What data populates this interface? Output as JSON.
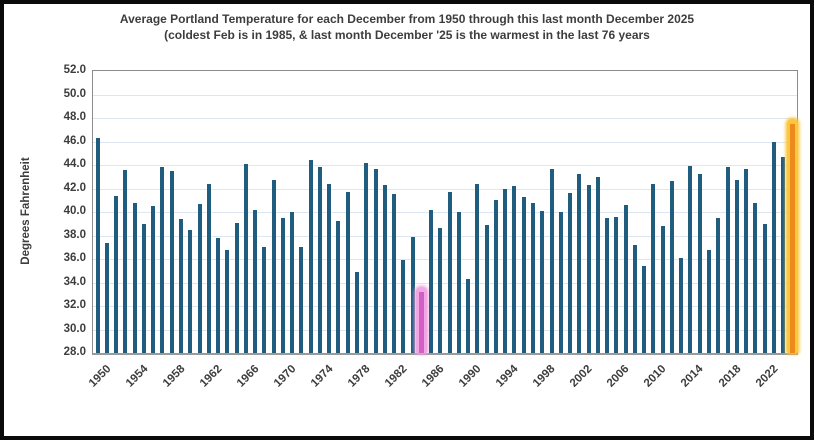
{
  "chart_data": {
    "type": "bar",
    "title": "Average Portland Temperature for each December from 1950 through this last month December 2025",
    "subtitle": "(coldest Feb is in 1985, & last month December '25 is the warmest in the last 76 years",
    "ylabel": "Degrees Fahrenheit",
    "ylim": [
      28.0,
      52.0
    ],
    "ytick_step": 2.0,
    "ytick_labels": [
      "52.0",
      "50.0",
      "48.0",
      "46.0",
      "44.0",
      "42.0",
      "40.0",
      "38.0",
      "36.0",
      "34.0",
      "32.0",
      "30.0",
      "28.0"
    ],
    "xtick_labels": [
      "1950",
      "1954",
      "1958",
      "1962",
      "1966",
      "1970",
      "1974",
      "1978",
      "1982",
      "1986",
      "1990",
      "1994",
      "1998",
      "2002",
      "2006",
      "2010",
      "2014",
      "2018",
      "2022"
    ],
    "grid": true,
    "legend": false,
    "bar_color": "#1F5C7D",
    "categories": [
      1950,
      1951,
      1952,
      1953,
      1954,
      1955,
      1956,
      1957,
      1958,
      1959,
      1960,
      1961,
      1962,
      1963,
      1964,
      1965,
      1966,
      1967,
      1968,
      1969,
      1970,
      1971,
      1972,
      1973,
      1974,
      1975,
      1976,
      1977,
      1978,
      1979,
      1980,
      1981,
      1982,
      1983,
      1984,
      1985,
      1986,
      1987,
      1988,
      1989,
      1990,
      1991,
      1992,
      1993,
      1994,
      1995,
      1996,
      1997,
      1998,
      1999,
      2000,
      2001,
      2002,
      2003,
      2004,
      2005,
      2006,
      2007,
      2008,
      2009,
      2010,
      2011,
      2012,
      2013,
      2014,
      2015,
      2016,
      2017,
      2018,
      2019,
      2020,
      2021,
      2022,
      2023,
      2024,
      2025
    ],
    "values": [
      46.3,
      37.4,
      41.4,
      43.6,
      40.8,
      39.0,
      40.5,
      43.8,
      43.5,
      39.4,
      38.5,
      40.7,
      42.4,
      37.8,
      36.8,
      39.1,
      44.1,
      40.2,
      37.0,
      42.7,
      39.5,
      40.0,
      37.0,
      44.4,
      43.8,
      42.4,
      39.2,
      41.7,
      34.9,
      44.2,
      43.7,
      42.3,
      41.5,
      35.9,
      37.9,
      33.2,
      40.2,
      38.6,
      41.7,
      40.0,
      34.3,
      42.4,
      38.9,
      41.0,
      42.0,
      42.2,
      41.3,
      40.8,
      40.1,
      43.7,
      40.0,
      41.6,
      43.2,
      42.3,
      43.0,
      39.5,
      39.6,
      40.6,
      37.2,
      35.4,
      42.4,
      38.8,
      42.6,
      36.1,
      43.9,
      43.2,
      36.8,
      39.5,
      43.8,
      42.7,
      43.7,
      40.8,
      39.0,
      46.0,
      44.7,
      47.5
    ],
    "highlights": [
      {
        "year": 1985,
        "meaning": "coldest-december",
        "glow_color": "#F1A7E1",
        "core_color": "#D25FC5"
      },
      {
        "year": 2025,
        "meaning": "warmest-december",
        "glow_color": "#FCC73E",
        "core_color": "#EC8A1B"
      }
    ]
  }
}
